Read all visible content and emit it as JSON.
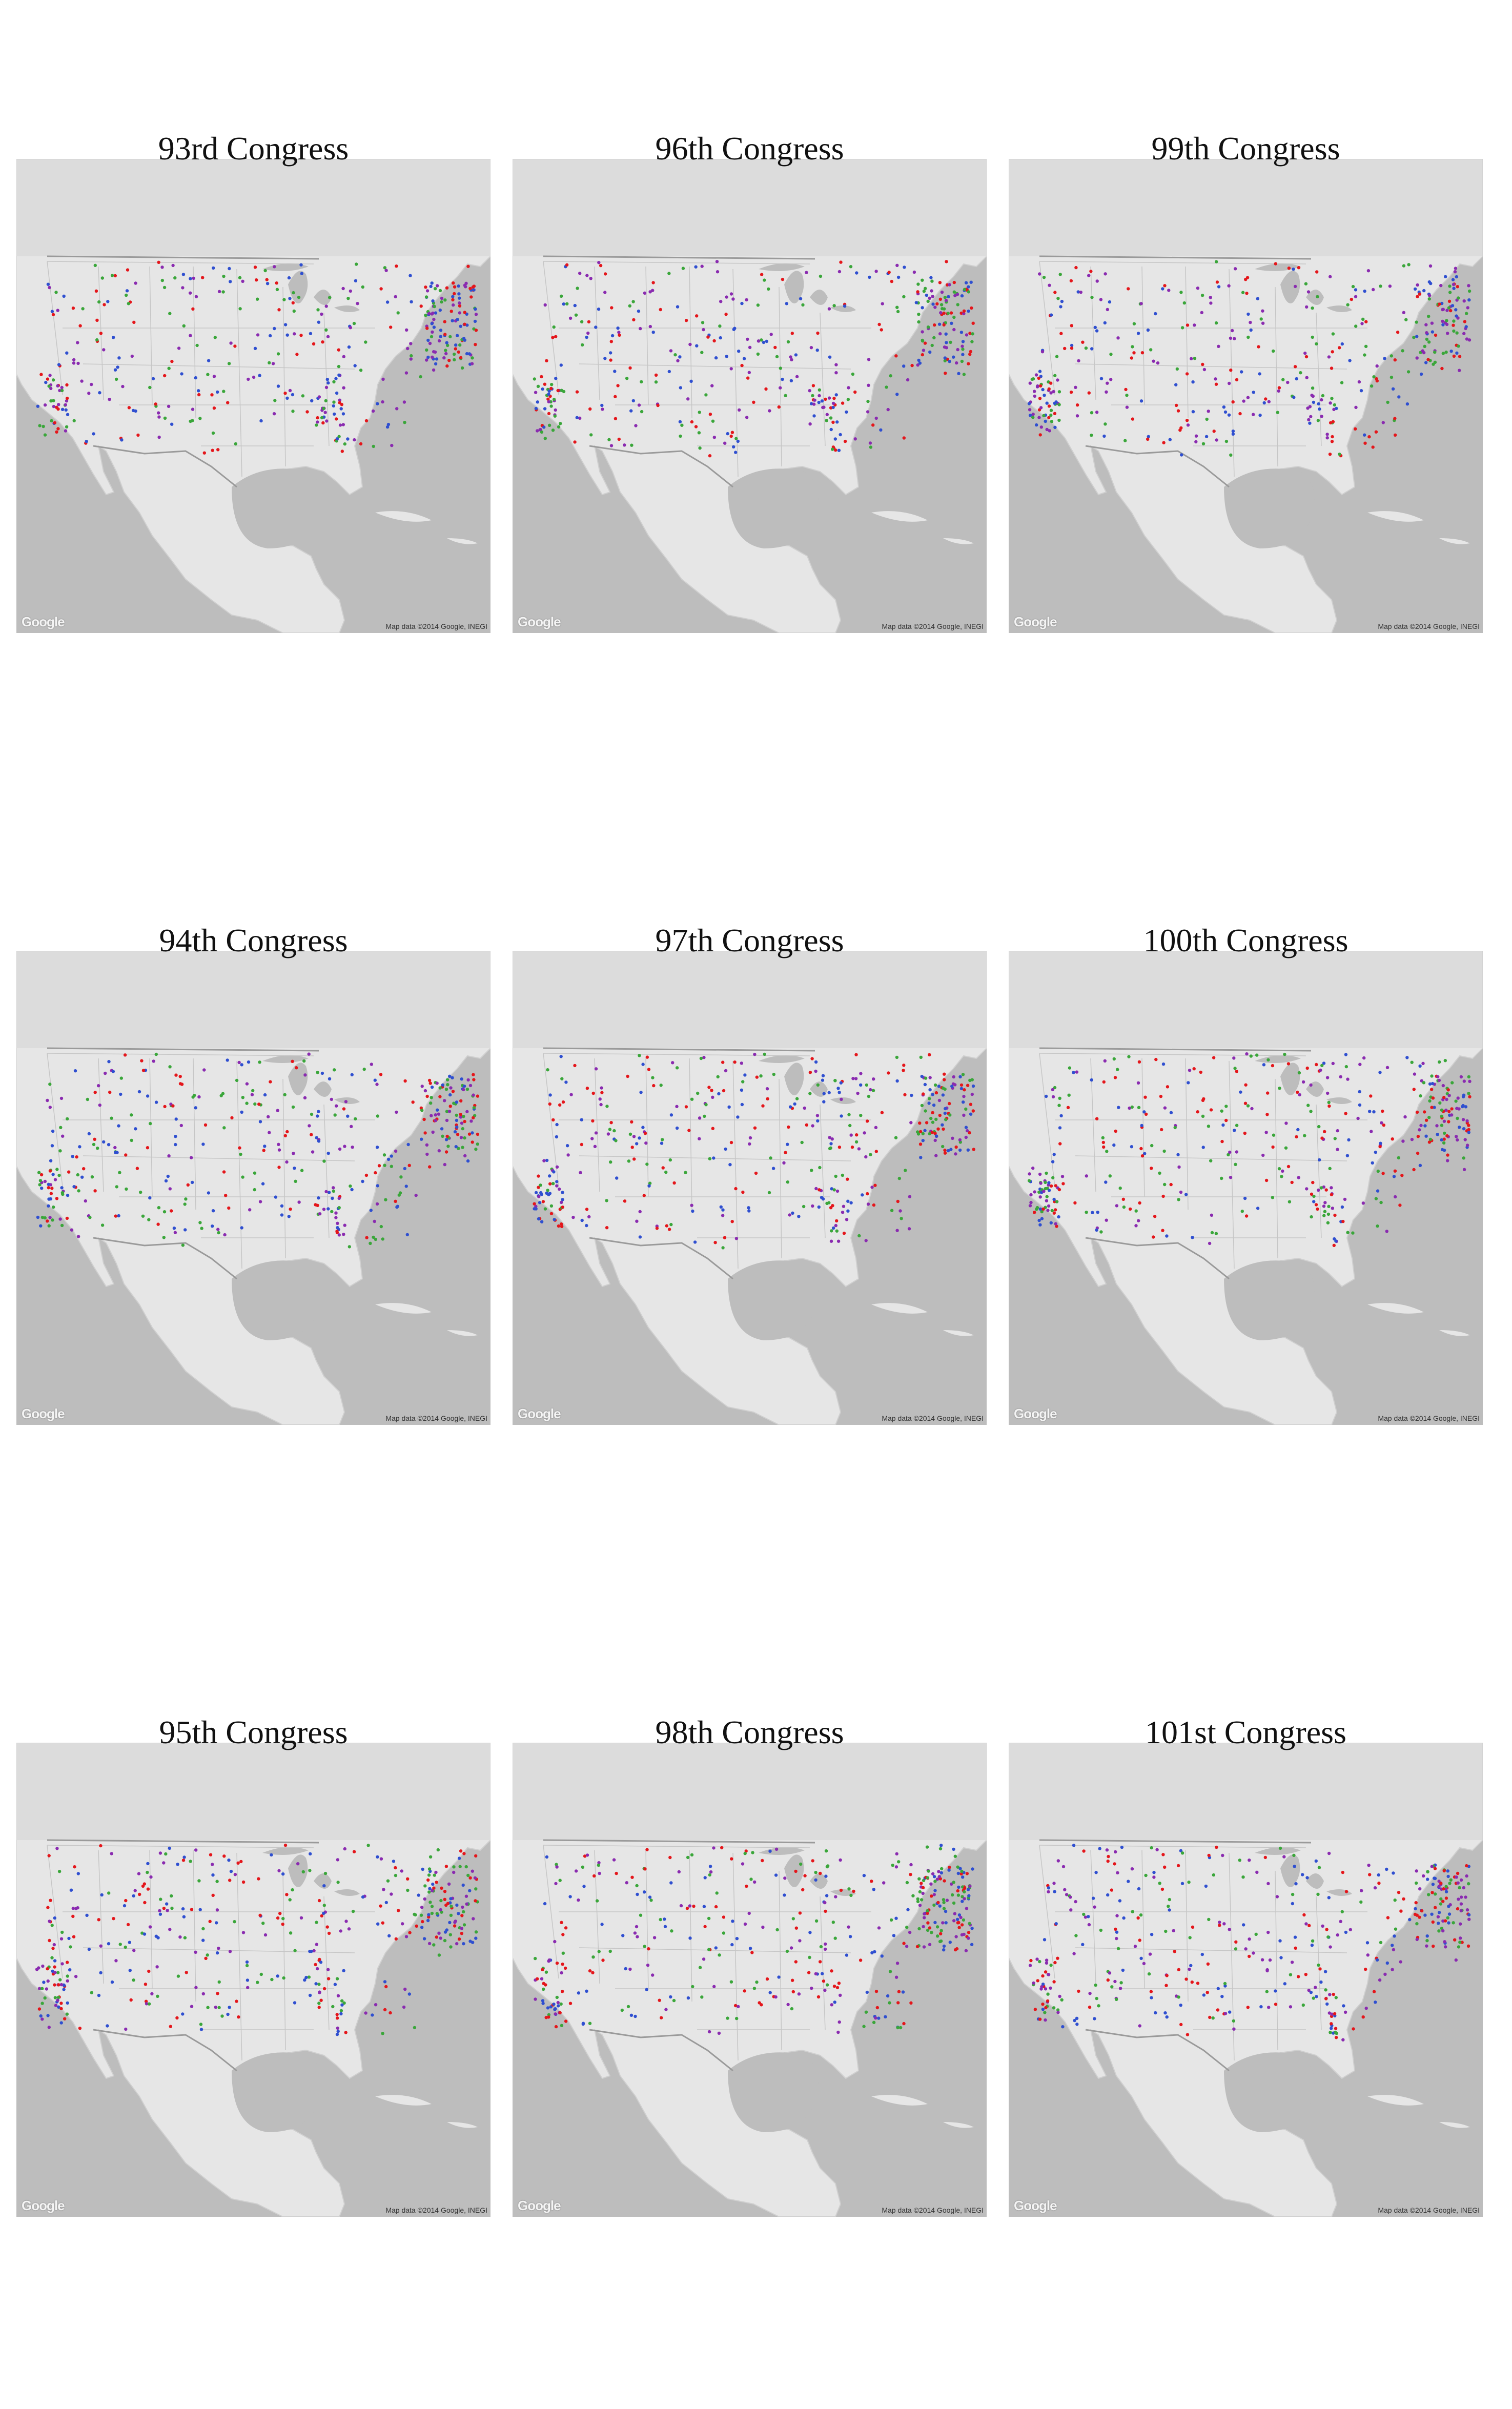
{
  "map_attribution": {
    "logo_text": "Google",
    "credit_text": "Map data ©2014 Google, INEGI"
  },
  "marker_colors": {
    "red": "#e4161b",
    "green": "#3aa63a",
    "blue": "#2f4fd0",
    "purple": "#8a2bb0"
  },
  "panels": [
    {
      "title": "93rd Congress"
    },
    {
      "title": "96th Congress"
    },
    {
      "title": "99th Congress"
    },
    {
      "title": "94th Congress"
    },
    {
      "title": "97th Congress"
    },
    {
      "title": "100th Congress"
    },
    {
      "title": "95th Congress"
    },
    {
      "title": "98th Congress"
    },
    {
      "title": "101st Congress"
    }
  ]
}
